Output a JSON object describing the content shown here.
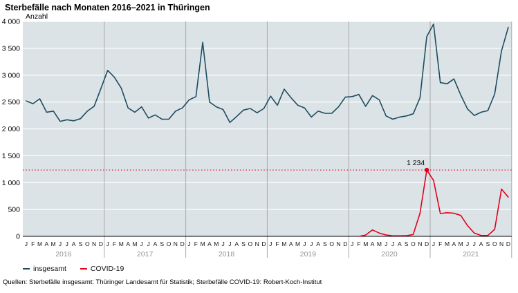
{
  "header": {
    "title": "Sterbefälle nach Monaten 2016–2021 in Thüringen"
  },
  "footer": {
    "sources": "Quellen: Sterbefälle insgesamt: Thüringer Landesamt für Statistik; Sterbefälle COVID-19: Robert-Koch-Institut"
  },
  "legend": {
    "items": [
      {
        "label": "insgesamt",
        "color": "#1e4b61"
      },
      {
        "label": "COVID-19",
        "color": "#e2001a"
      }
    ]
  },
  "chart_data": {
    "type": "line",
    "title": "Sterbefälle nach Monaten 2016–2021 in Thüringen",
    "y_axis_label": "Anzahl",
    "y_max": 4000,
    "ylim": [
      0,
      4000
    ],
    "grid": true,
    "legend_position": "bottom-left",
    "y_ticks": [
      {
        "value": 0,
        "label": "0"
      },
      {
        "value": 500,
        "label": "500"
      },
      {
        "value": 1000,
        "label": "1 000"
      },
      {
        "value": 1500,
        "label": "1 500"
      },
      {
        "value": 2000,
        "label": "2 000"
      },
      {
        "value": 2500,
        "label": "2 500"
      },
      {
        "value": 3000,
        "label": "3 000"
      },
      {
        "value": 3500,
        "label": "3 500"
      },
      {
        "value": 4000,
        "label": "4 000"
      }
    ],
    "years": [
      "2016",
      "2017",
      "2018",
      "2019",
      "2020",
      "2021"
    ],
    "month_letters": [
      "J",
      "F",
      "M",
      "A",
      "M",
      "J",
      "J",
      "A",
      "S",
      "O",
      "N",
      "D"
    ],
    "series": [
      {
        "name": "insgesamt",
        "color": "#1e4b61",
        "start_index": 0,
        "values": [
          2520,
          2470,
          2560,
          2310,
          2330,
          2140,
          2170,
          2150,
          2190,
          2330,
          2420,
          2750,
          3090,
          2960,
          2760,
          2390,
          2310,
          2410,
          2200,
          2260,
          2180,
          2180,
          2330,
          2390,
          2540,
          2600,
          3610,
          2500,
          2410,
          2360,
          2120,
          2230,
          2350,
          2380,
          2300,
          2380,
          2610,
          2440,
          2740,
          2580,
          2440,
          2390,
          2220,
          2330,
          2290,
          2290,
          2410,
          2590,
          2600,
          2640,
          2420,
          2620,
          2540,
          2240,
          2180,
          2220,
          2240,
          2280,
          2580,
          3720,
          3950,
          2860,
          2840,
          2930,
          2630,
          2370,
          2250,
          2310,
          2340,
          2650,
          3450,
          3890
        ]
      },
      {
        "name": "COVID-19",
        "color": "#e2001a",
        "start_index": 49,
        "values": [
          0,
          25,
          120,
          60,
          25,
          10,
          10,
          12,
          35,
          430,
          1234,
          1040,
          425,
          440,
          430,
          390,
          200,
          60,
          15,
          15,
          130,
          880,
          730
        ]
      }
    ],
    "reference_line": {
      "value": 1234,
      "label": "1 234",
      "color": "#e2001a",
      "style": "dotted",
      "marker_index": 59
    },
    "plot_background": "#dbe3e6",
    "grid_color": "#ffffff",
    "separator_color": "#a9a9a9",
    "axis_color": "#000000",
    "year_label_color": "#8f9294"
  }
}
